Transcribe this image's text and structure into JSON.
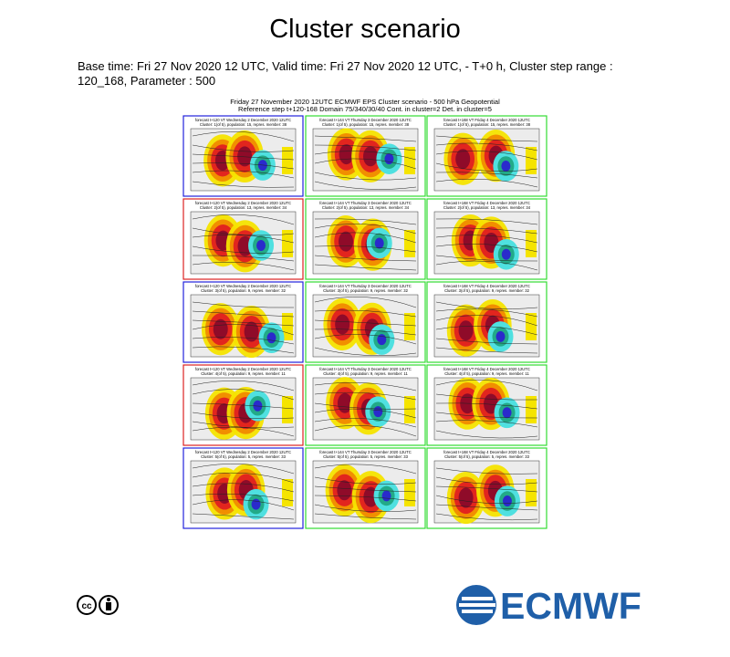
{
  "header": {
    "title": "Cluster scenario",
    "subtitle": "Base time: Fri 27 Nov 2020 12 UTC, Valid time: Fri 27 Nov 2020 12 UTC, - T+0 h, Cluster step range : 120_168, Parameter : 500"
  },
  "figure": {
    "title_lines": [
      "Friday 27 November 2020 12UTC ECMWF EPS Cluster scenario - 500 hPa Geopotential",
      "Reference step t+120-168 Domain 75/340/30/40 Cont. in cluster=2 Det. in cluster=5"
    ],
    "rows": [
      {
        "frame_color": "#2222dd",
        "cluster": "Cluster: 1(of 5), population: 15, repres. member: 38"
      },
      {
        "frame_color": "#dd2222",
        "cluster": "Cluster: 2(of 5), population: 13, repres. member: 34"
      },
      {
        "frame_color": "#2222dd",
        "cluster": "Cluster: 3(of 5), population: 9, repres. member: 32"
      },
      {
        "frame_color": "#dd2222",
        "cluster": "Cluster: 4(of 5), population: 9, repres. member: 11"
      },
      {
        "frame_color": "#2222dd",
        "cluster": "Cluster: 5(of 5), population: 5, repres. member: 33"
      }
    ],
    "columns": [
      {
        "frame_color": null,
        "forecast": "forecast t+120 VT Wednesday 2 December 2020 12UTC"
      },
      {
        "frame_color": "#33dd33",
        "forecast": "forecast t+144 VT Thursday 3 December 2020 12UTC"
      },
      {
        "frame_color": "#33dd33",
        "forecast": "forecast t+168 VT Friday 4 December 2020 12UTC"
      }
    ]
  },
  "footer": {
    "logo": "ECMWF"
  }
}
